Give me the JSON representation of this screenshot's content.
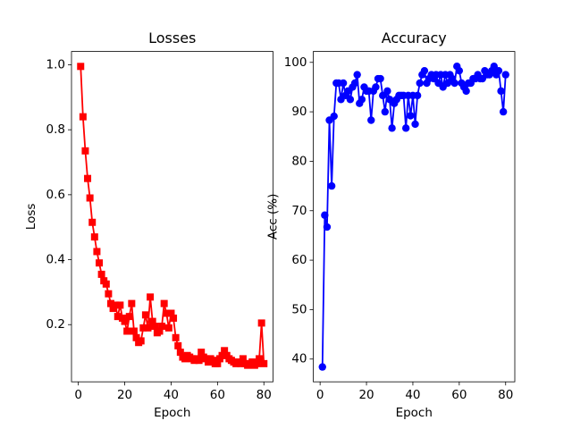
{
  "chart_data": [
    {
      "type": "line",
      "marker": "square",
      "title": "Losses",
      "xlabel": "Epoch",
      "ylabel": "Loss",
      "color": "#ff0000",
      "x": [
        1,
        2,
        3,
        4,
        5,
        6,
        7,
        8,
        9,
        10,
        11,
        12,
        13,
        14,
        15,
        16,
        17,
        18,
        19,
        20,
        21,
        22,
        23,
        24,
        25,
        26,
        27,
        28,
        29,
        30,
        31,
        32,
        33,
        34,
        35,
        36,
        37,
        38,
        39,
        40,
        41,
        42,
        43,
        44,
        45,
        46,
        47,
        48,
        49,
        50,
        51,
        52,
        53,
        54,
        55,
        56,
        57,
        58,
        59,
        60,
        61,
        62,
        63,
        64,
        65,
        66,
        67,
        68,
        69,
        70,
        71,
        72,
        73,
        74,
        75,
        76,
        77,
        78,
        79,
        80
      ],
      "values": [
        0.995,
        0.84,
        0.735,
        0.65,
        0.59,
        0.515,
        0.47,
        0.425,
        0.39,
        0.355,
        0.335,
        0.325,
        0.295,
        0.265,
        0.25,
        0.26,
        0.225,
        0.26,
        0.22,
        0.21,
        0.18,
        0.225,
        0.265,
        0.18,
        0.16,
        0.145,
        0.15,
        0.19,
        0.23,
        0.19,
        0.285,
        0.21,
        0.195,
        0.175,
        0.18,
        0.195,
        0.265,
        0.235,
        0.19,
        0.235,
        0.22,
        0.16,
        0.135,
        0.115,
        0.1,
        0.095,
        0.105,
        0.1,
        0.095,
        0.09,
        0.095,
        0.09,
        0.115,
        0.1,
        0.095,
        0.085,
        0.095,
        0.09,
        0.08,
        0.08,
        0.095,
        0.105,
        0.12,
        0.105,
        0.095,
        0.09,
        0.085,
        0.08,
        0.085,
        0.08,
        0.095,
        0.08,
        0.075,
        0.08,
        0.085,
        0.075,
        0.08,
        0.095,
        0.205,
        0.08
      ],
      "xlim": [
        -2.95,
        83.95
      ],
      "xticks": [
        0,
        20,
        40,
        60,
        80
      ],
      "ylim": [
        0.024,
        1.041
      ],
      "yticks": [
        0.2,
        0.4,
        0.6,
        0.8,
        {
          "value": 1,
          "label": "1.0"
        }
      ]
    },
    {
      "type": "line",
      "marker": "circle",
      "title": "Accuracy",
      "xlabel": "Epoch",
      "ylabel": "Acc (%)",
      "color": "#0000ff",
      "x": [
        1,
        2,
        3,
        4,
        5,
        6,
        7,
        8,
        9,
        10,
        11,
        12,
        13,
        14,
        15,
        16,
        17,
        18,
        19,
        20,
        21,
        22,
        23,
        24,
        25,
        26,
        27,
        28,
        29,
        30,
        31,
        32,
        33,
        34,
        35,
        36,
        37,
        38,
        39,
        40,
        41,
        42,
        43,
        44,
        45,
        46,
        47,
        48,
        49,
        50,
        51,
        52,
        53,
        54,
        55,
        56,
        57,
        58,
        59,
        60,
        61,
        62,
        63,
        64,
        65,
        66,
        67,
        68,
        69,
        70,
        71,
        72,
        73,
        74,
        75,
        76,
        77,
        78,
        79,
        80
      ],
      "values": [
        38.4,
        69.1,
        66.7,
        88.3,
        75,
        89.1,
        95.8,
        95.8,
        92.5,
        95.8,
        93.3,
        94.2,
        92.5,
        95,
        95.8,
        97.5,
        91.7,
        92.5,
        95,
        94.2,
        94.2,
        88.3,
        94.2,
        95,
        96.7,
        96.7,
        93.3,
        90,
        94.2,
        92.5,
        86.7,
        91.7,
        92.5,
        93.3,
        93.3,
        93.3,
        86.7,
        93.3,
        89.2,
        93.3,
        87.5,
        93.3,
        95.8,
        97.5,
        98.3,
        95.8,
        96.7,
        97.5,
        96.7,
        97.5,
        95.8,
        97.5,
        95,
        97.5,
        95.8,
        97.5,
        96.7,
        95.8,
        99.2,
        98.3,
        95.8,
        95,
        94.2,
        95.8,
        95.8,
        96.7,
        96.7,
        97.5,
        96.7,
        96.7,
        98.3,
        97.5,
        97.5,
        98.3,
        99.2,
        97.5,
        98.3,
        94.2,
        90,
        97.5
      ],
      "xlim": [
        -2.95,
        83.95
      ],
      "xticks": [
        0,
        20,
        40,
        60,
        80
      ],
      "ylim": [
        35.4,
        102.2
      ],
      "yticks": [
        40,
        50,
        60,
        70,
        80,
        90,
        100
      ]
    }
  ]
}
